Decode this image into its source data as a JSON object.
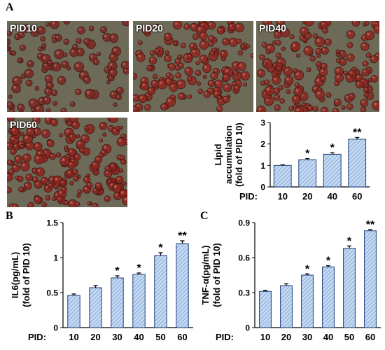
{
  "panels": {
    "a": "A",
    "b": "B",
    "c": "C"
  },
  "micrographs": [
    {
      "label": "PID10",
      "density": 0.55,
      "stain": "#7a2a24"
    },
    {
      "label": "PID20",
      "density": 0.8,
      "stain": "#8c2a22"
    },
    {
      "label": "PID40",
      "density": 0.85,
      "stain": "#8a2a22"
    },
    {
      "label": "PID60",
      "density": 0.95,
      "stain": "#8a2620"
    }
  ],
  "colors": {
    "bar_fill": "#c6d9f0",
    "bar_hatch": "#5b8fd1",
    "bar_stroke": "#1f3f7a",
    "axis": "#000000"
  },
  "chart_data": [
    {
      "type": "bar",
      "panel": "A",
      "categories": [
        "10",
        "20",
        "40",
        "60"
      ],
      "values": [
        1.0,
        1.27,
        1.52,
        2.22
      ],
      "errors": [
        0.03,
        0.05,
        0.07,
        0.08
      ],
      "significance": [
        "",
        "*",
        "*",
        "**"
      ],
      "ylim": [
        0,
        3
      ],
      "yticks": [
        "0",
        "1",
        "2",
        "3"
      ],
      "ylabel_line1": "Lipid",
      "ylabel_line2": "accumulation",
      "ylabel_line3": "(fold of PID 10)",
      "xlabel_prefix": "PID:"
    },
    {
      "type": "bar",
      "panel": "B",
      "categories": [
        "10",
        "20",
        "30",
        "40",
        "50",
        "60"
      ],
      "values": [
        0.46,
        0.57,
        0.71,
        0.76,
        1.03,
        1.2
      ],
      "errors": [
        0.02,
        0.03,
        0.03,
        0.02,
        0.04,
        0.04
      ],
      "significance": [
        "",
        "",
        "*",
        "*",
        "*",
        "**"
      ],
      "ylim": [
        0,
        1.5
      ],
      "yticks": [
        "0",
        "0.5",
        "1",
        "1.5"
      ],
      "ylabel_line1": "IL6(pg/mL)",
      "ylabel_line2": "(fold of PID 10)",
      "xlabel_prefix": "PID:"
    },
    {
      "type": "bar",
      "panel": "C",
      "categories": [
        "10",
        "20",
        "30",
        "40",
        "50",
        "60"
      ],
      "values": [
        0.31,
        0.36,
        0.45,
        0.52,
        0.68,
        0.83
      ],
      "errors": [
        0.01,
        0.015,
        0.01,
        0.01,
        0.02,
        0.01
      ],
      "significance": [
        "",
        "",
        "*",
        "*",
        "*",
        "**"
      ],
      "ylim": [
        0,
        0.9
      ],
      "yticks": [
        "0",
        "0.3",
        "0.6",
        "0.9"
      ],
      "ylabel_line1": "TNF-α(pg/mL)",
      "ylabel_line2": "(fold of PID 10)",
      "xlabel_prefix": "PID:"
    }
  ]
}
